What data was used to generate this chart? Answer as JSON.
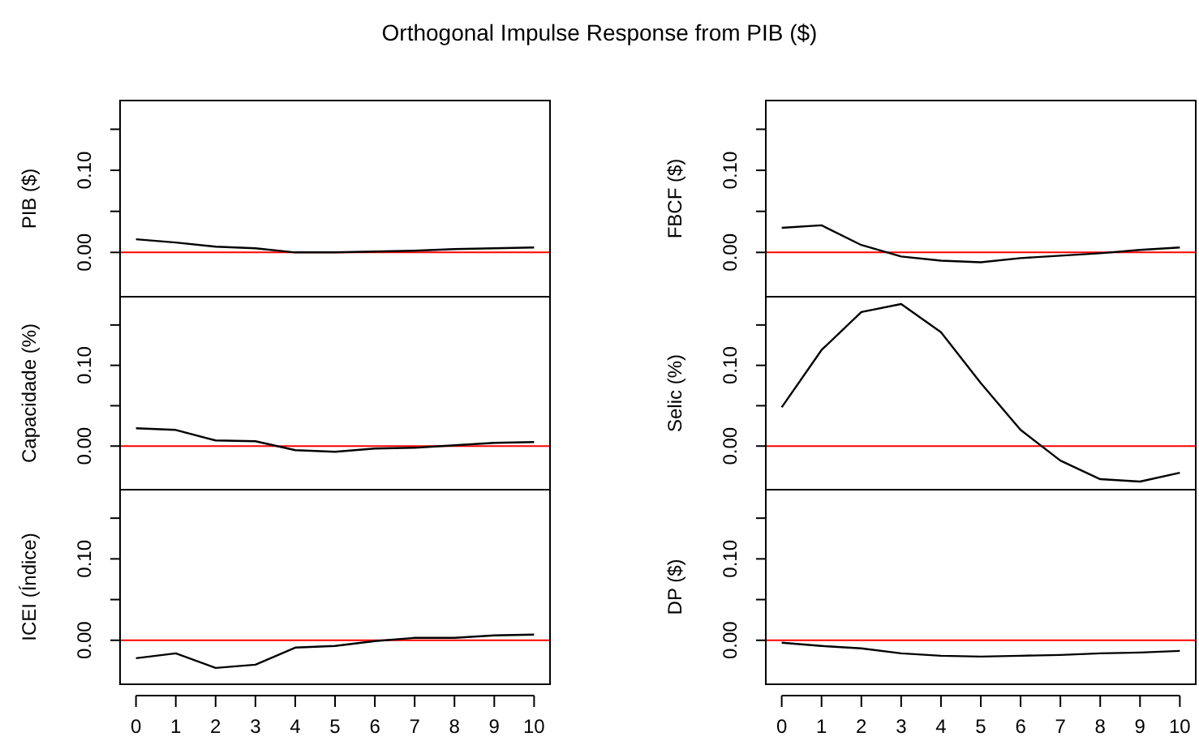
{
  "chart_data": [
    {
      "type": "line",
      "title": "Orthogonal Impulse Response from PIB ($)",
      "ylabel": "PIB ($)",
      "x": [
        0,
        1,
        2,
        3,
        4,
        5,
        6,
        7,
        8,
        9,
        10
      ],
      "series": [
        {
          "color": "#000000",
          "values": [
            0.016,
            0.012,
            0.007,
            0.005,
            0,
            0,
            0.001,
            0.002,
            0.004,
            0.005,
            0.006
          ]
        }
      ],
      "xlim": [
        -0.4,
        10.4
      ],
      "ylim": [
        -0.054,
        0.185
      ],
      "yticks": [
        {
          "value": 0,
          "label": "0.00"
        },
        {
          "value": 0.05,
          "label": null
        },
        {
          "value": 0.1,
          "label": "0.10"
        },
        {
          "value": 0.15,
          "label": null
        }
      ],
      "ref_lines": [
        {
          "axis": "y",
          "value": 0,
          "color": "#ff0000"
        }
      ],
      "tick_labels": "y",
      "grid": false,
      "marker": "none"
    },
    {
      "type": "line",
      "ylabel": "FBCF ($)",
      "x": [
        0,
        1,
        2,
        3,
        4,
        5,
        6,
        7,
        8,
        9,
        10
      ],
      "series": [
        {
          "color": "#000000",
          "values": [
            0.03,
            0.033,
            0.009,
            -0.005,
            -0.01,
            -0.012,
            -0.007,
            -0.004,
            -0.001,
            0.003,
            0.006
          ]
        }
      ],
      "xlim": [
        -0.4,
        10.4
      ],
      "ylim": [
        -0.054,
        0.185
      ],
      "yticks": [
        {
          "value": 0,
          "label": "0.00"
        },
        {
          "value": 0.05,
          "label": null
        },
        {
          "value": 0.1,
          "label": "0.10"
        },
        {
          "value": 0.15,
          "label": null
        }
      ],
      "ref_lines": [
        {
          "axis": "y",
          "value": 0,
          "color": "#ff0000"
        }
      ],
      "tick_labels": "y",
      "grid": false,
      "marker": "none"
    },
    {
      "type": "line",
      "ylabel": "Capacidade (%)",
      "x": [
        0,
        1,
        2,
        3,
        4,
        5,
        6,
        7,
        8,
        9,
        10
      ],
      "series": [
        {
          "color": "#000000",
          "values": [
            0.022,
            0.02,
            0.007,
            0.006,
            -0.005,
            -0.007,
            -0.003,
            -0.002,
            0.001,
            0.004,
            0.005
          ]
        }
      ],
      "xlim": [
        -0.4,
        10.4
      ],
      "ylim": [
        -0.054,
        0.185
      ],
      "yticks": [
        {
          "value": 0,
          "label": "0.00"
        },
        {
          "value": 0.05,
          "label": null
        },
        {
          "value": 0.1,
          "label": "0.10"
        },
        {
          "value": 0.15,
          "label": null
        }
      ],
      "ref_lines": [
        {
          "axis": "y",
          "value": 0,
          "color": "#ff0000"
        }
      ],
      "tick_labels": "y",
      "grid": false,
      "marker": "none"
    },
    {
      "type": "line",
      "ylabel": "Selic (%)",
      "x": [
        0,
        1,
        2,
        3,
        4,
        5,
        6,
        7,
        8,
        9,
        10
      ],
      "series": [
        {
          "color": "#000000",
          "values": [
            0.048,
            0.119,
            0.166,
            0.176,
            0.141,
            0.078,
            0.02,
            -0.018,
            -0.041,
            -0.044,
            -0.033
          ]
        }
      ],
      "xlim": [
        -0.4,
        10.4
      ],
      "ylim": [
        -0.054,
        0.185
      ],
      "yticks": [
        {
          "value": 0,
          "label": "0.00"
        },
        {
          "value": 0.05,
          "label": null
        },
        {
          "value": 0.1,
          "label": "0.10"
        },
        {
          "value": 0.15,
          "label": null
        }
      ],
      "ref_lines": [
        {
          "axis": "y",
          "value": 0,
          "color": "#ff0000"
        }
      ],
      "tick_labels": "y",
      "grid": false,
      "marker": "none"
    },
    {
      "type": "line",
      "ylabel": "ICEI (Índice)",
      "x": [
        0,
        1,
        2,
        3,
        4,
        5,
        6,
        7,
        8,
        9,
        10
      ],
      "series": [
        {
          "color": "#000000",
          "values": [
            -0.022,
            -0.016,
            -0.034,
            -0.03,
            -0.009,
            -0.007,
            -0.001,
            0.003,
            0.003,
            0.006,
            0.007
          ]
        }
      ],
      "xlim": [
        -0.4,
        10.4
      ],
      "xticks": [
        0,
        1,
        2,
        3,
        4,
        5,
        6,
        7,
        8,
        9,
        10
      ],
      "ylim": [
        -0.054,
        0.185
      ],
      "yticks": [
        {
          "value": 0,
          "label": "0.00"
        },
        {
          "value": 0.05,
          "label": null
        },
        {
          "value": 0.1,
          "label": "0.10"
        },
        {
          "value": 0.15,
          "label": null
        }
      ],
      "ref_lines": [
        {
          "axis": "y",
          "value": 0,
          "color": "#ff0000"
        }
      ],
      "grid": false,
      "marker": "none"
    },
    {
      "type": "line",
      "ylabel": "DP ($)",
      "x": [
        0,
        1,
        2,
        3,
        4,
        5,
        6,
        7,
        8,
        9,
        10
      ],
      "series": [
        {
          "color": "#000000",
          "values": [
            -0.003,
            -0.007,
            -0.01,
            -0.016,
            -0.019,
            -0.02,
            -0.019,
            -0.018,
            -0.016,
            -0.015,
            -0.013
          ]
        }
      ],
      "xlim": [
        -0.4,
        10.4
      ],
      "xticks": [
        0,
        1,
        2,
        3,
        4,
        5,
        6,
        7,
        8,
        9,
        10
      ],
      "ylim": [
        -0.054,
        0.185
      ],
      "yticks": [
        {
          "value": 0,
          "label": "0.00"
        },
        {
          "value": 0.05,
          "label": null
        },
        {
          "value": 0.1,
          "label": "0.10"
        },
        {
          "value": 0.15,
          "label": null
        }
      ],
      "ref_lines": [
        {
          "axis": "y",
          "value": 0,
          "color": "#ff0000"
        }
      ],
      "grid": false,
      "marker": "none"
    }
  ]
}
